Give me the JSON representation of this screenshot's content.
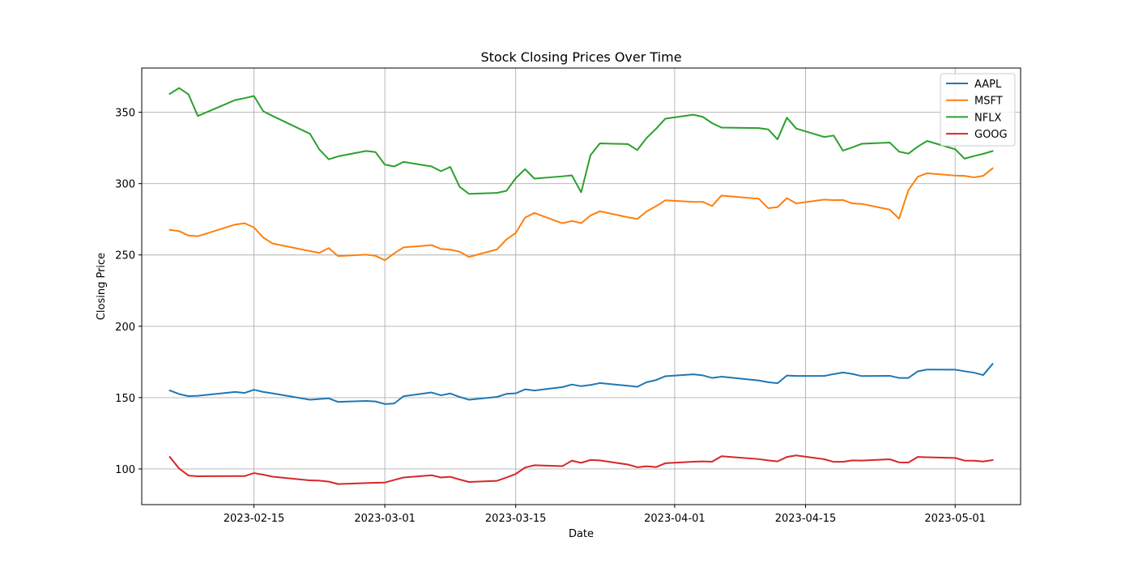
{
  "chart_data": {
    "type": "line",
    "title": "Stock Closing Prices Over Time",
    "xlabel": "Date",
    "ylabel": "Closing Price",
    "x_ticks": [
      "2023-02-15",
      "2023-03-01",
      "2023-03-15",
      "2023-04-01",
      "2023-04-15",
      "2023-05-01"
    ],
    "y_ticks": [
      100,
      150,
      200,
      250,
      300,
      350
    ],
    "xlim": [
      "2023-02-03",
      "2023-05-08"
    ],
    "ylim": [
      75,
      381
    ],
    "grid": true,
    "legend_position": "top-right",
    "series": [
      {
        "name": "AAPL",
        "color": "#1f77b4",
        "points": [
          [
            "2023-02-06",
            155
          ],
          [
            "2023-02-07",
            152.5
          ],
          [
            "2023-02-08",
            151
          ],
          [
            "2023-02-09",
            151.3
          ],
          [
            "2023-02-13",
            154
          ],
          [
            "2023-02-14",
            153.3
          ],
          [
            "2023-02-15",
            155.5
          ],
          [
            "2023-02-16",
            154
          ],
          [
            "2023-02-17",
            153
          ],
          [
            "2023-02-21",
            148.5
          ],
          [
            "2023-02-22",
            149
          ],
          [
            "2023-02-23",
            149.5
          ],
          [
            "2023-02-24",
            147
          ],
          [
            "2023-02-27",
            147.7
          ],
          [
            "2023-02-28",
            147.3
          ],
          [
            "2023-03-01",
            145.5
          ],
          [
            "2023-03-02",
            145.9
          ],
          [
            "2023-03-03",
            151
          ],
          [
            "2023-03-06",
            153.6
          ],
          [
            "2023-03-07",
            151.6
          ],
          [
            "2023-03-08",
            152.9
          ],
          [
            "2023-03-09",
            150.5
          ],
          [
            "2023-03-10",
            148.5
          ],
          [
            "2023-03-13",
            150.5
          ],
          [
            "2023-03-14",
            152.6
          ],
          [
            "2023-03-15",
            153
          ],
          [
            "2023-03-16",
            155.8
          ],
          [
            "2023-03-17",
            155
          ],
          [
            "2023-03-20",
            157.4
          ],
          [
            "2023-03-21",
            159.2
          ],
          [
            "2023-03-22",
            158
          ],
          [
            "2023-03-23",
            158.9
          ],
          [
            "2023-03-24",
            160.2
          ],
          [
            "2023-03-27",
            158.3
          ],
          [
            "2023-03-28",
            157.6
          ],
          [
            "2023-03-29",
            160.8
          ],
          [
            "2023-03-30",
            162.3
          ],
          [
            "2023-03-31",
            165
          ],
          [
            "2023-04-03",
            166.3
          ],
          [
            "2023-04-04",
            165.6
          ],
          [
            "2023-04-05",
            163.8
          ],
          [
            "2023-04-06",
            164.7
          ],
          [
            "2023-04-10",
            162
          ],
          [
            "2023-04-11",
            160.8
          ],
          [
            "2023-04-12",
            160.1
          ],
          [
            "2023-04-13",
            165.5
          ],
          [
            "2023-04-14",
            165.2
          ],
          [
            "2023-04-17",
            165.2
          ],
          [
            "2023-04-18",
            166.5
          ],
          [
            "2023-04-19",
            167.6
          ],
          [
            "2023-04-20",
            166.6
          ],
          [
            "2023-04-21",
            165.1
          ],
          [
            "2023-04-24",
            165.3
          ],
          [
            "2023-04-25",
            163.8
          ],
          [
            "2023-04-26",
            163.8
          ],
          [
            "2023-04-27",
            168.4
          ],
          [
            "2023-04-28",
            169.7
          ],
          [
            "2023-05-01",
            169.6
          ],
          [
            "2023-05-02",
            168.5
          ],
          [
            "2023-05-03",
            167.5
          ],
          [
            "2023-05-04",
            165.8
          ],
          [
            "2023-05-05",
            173.6
          ]
        ]
      },
      {
        "name": "MSFT",
        "color": "#ff7f0e",
        "points": [
          [
            "2023-02-06",
            267.6
          ],
          [
            "2023-02-07",
            266.7
          ],
          [
            "2023-02-08",
            263.6
          ],
          [
            "2023-02-09",
            263.1
          ],
          [
            "2023-02-13",
            271.3
          ],
          [
            "2023-02-14",
            272.2
          ],
          [
            "2023-02-15",
            269.3
          ],
          [
            "2023-02-16",
            262.2
          ],
          [
            "2023-02-17",
            258
          ],
          [
            "2023-02-21",
            252.7
          ],
          [
            "2023-02-22",
            251.5
          ],
          [
            "2023-02-23",
            254.8
          ],
          [
            "2023-02-24",
            249.2
          ],
          [
            "2023-02-27",
            250.2
          ],
          [
            "2023-02-28",
            249.4
          ],
          [
            "2023-03-01",
            246.3
          ],
          [
            "2023-03-02",
            251.1
          ],
          [
            "2023-03-03",
            255.3
          ],
          [
            "2023-03-06",
            256.9
          ],
          [
            "2023-03-07",
            254.2
          ],
          [
            "2023-03-08",
            253.7
          ],
          [
            "2023-03-09",
            252.3
          ],
          [
            "2023-03-10",
            248.6
          ],
          [
            "2023-03-13",
            253.9
          ],
          [
            "2023-03-14",
            260.8
          ],
          [
            "2023-03-15",
            265.4
          ],
          [
            "2023-03-16",
            276.2
          ],
          [
            "2023-03-17",
            279.4
          ],
          [
            "2023-03-20",
            272.2
          ],
          [
            "2023-03-21",
            273.8
          ],
          [
            "2023-03-22",
            272.3
          ],
          [
            "2023-03-23",
            277.7
          ],
          [
            "2023-03-24",
            280.6
          ],
          [
            "2023-03-27",
            276.4
          ],
          [
            "2023-03-28",
            275.2
          ],
          [
            "2023-03-29",
            280.5
          ],
          [
            "2023-03-30",
            284.1
          ],
          [
            "2023-03-31",
            288.3
          ],
          [
            "2023-04-03",
            287.2
          ],
          [
            "2023-04-04",
            287.2
          ],
          [
            "2023-04-05",
            284.3
          ],
          [
            "2023-04-06",
            291.6
          ],
          [
            "2023-04-10",
            289.4
          ],
          [
            "2023-04-11",
            282.8
          ],
          [
            "2023-04-12",
            283.5
          ],
          [
            "2023-04-13",
            289.8
          ],
          [
            "2023-04-14",
            286.1
          ],
          [
            "2023-04-17",
            288.8
          ],
          [
            "2023-04-18",
            288.4
          ],
          [
            "2023-04-19",
            288.5
          ],
          [
            "2023-04-20",
            286.1
          ],
          [
            "2023-04-21",
            285.8
          ],
          [
            "2023-04-24",
            281.8
          ],
          [
            "2023-04-25",
            275.4
          ],
          [
            "2023-04-26",
            295.4
          ],
          [
            "2023-04-27",
            304.8
          ],
          [
            "2023-04-28",
            307.3
          ],
          [
            "2023-05-01",
            305.6
          ],
          [
            "2023-05-02",
            305.4
          ],
          [
            "2023-05-03",
            304.4
          ],
          [
            "2023-05-04",
            305.4
          ],
          [
            "2023-05-05",
            310.7
          ]
        ]
      },
      {
        "name": "NFLX",
        "color": "#2ca02c",
        "points": [
          [
            "2023-02-06",
            362.9
          ],
          [
            "2023-02-07",
            367
          ],
          [
            "2023-02-08",
            362.5
          ],
          [
            "2023-02-09",
            347.4
          ],
          [
            "2023-02-13",
            358.6
          ],
          [
            "2023-02-14",
            359.9
          ],
          [
            "2023-02-15",
            361.4
          ],
          [
            "2023-02-16",
            350.7
          ],
          [
            "2023-02-17",
            347.4
          ],
          [
            "2023-02-21",
            334.9
          ],
          [
            "2023-02-22",
            323.9
          ],
          [
            "2023-02-23",
            317
          ],
          [
            "2023-02-24",
            319.1
          ],
          [
            "2023-02-27",
            322.9
          ],
          [
            "2023-02-28",
            322.1
          ],
          [
            "2023-03-01",
            313.3
          ],
          [
            "2023-03-02",
            312
          ],
          [
            "2023-03-03",
            315.2
          ],
          [
            "2023-03-06",
            312
          ],
          [
            "2023-03-07",
            308.7
          ],
          [
            "2023-03-08",
            311.7
          ],
          [
            "2023-03-09",
            297.8
          ],
          [
            "2023-03-10",
            292.8
          ],
          [
            "2023-03-13",
            293.5
          ],
          [
            "2023-03-14",
            294.9
          ],
          [
            "2023-03-15",
            303.8
          ],
          [
            "2023-03-16",
            310.1
          ],
          [
            "2023-03-17",
            303.5
          ],
          [
            "2023-03-20",
            305.1
          ],
          [
            "2023-03-21",
            305.8
          ],
          [
            "2023-03-22",
            293.9
          ],
          [
            "2023-03-23",
            320
          ],
          [
            "2023-03-24",
            328.2
          ],
          [
            "2023-03-27",
            327.7
          ],
          [
            "2023-03-28",
            323.5
          ],
          [
            "2023-03-29",
            332
          ],
          [
            "2023-03-30",
            338.4
          ],
          [
            "2023-03-31",
            345.5
          ],
          [
            "2023-04-03",
            348.3
          ],
          [
            "2023-04-04",
            346.8
          ],
          [
            "2023-04-05",
            342.4
          ],
          [
            "2023-04-06",
            339.3
          ],
          [
            "2023-04-10",
            338.9
          ],
          [
            "2023-04-11",
            338
          ],
          [
            "2023-04-12",
            331
          ],
          [
            "2023-04-13",
            346.2
          ],
          [
            "2023-04-14",
            338.6
          ],
          [
            "2023-04-17",
            332.7
          ],
          [
            "2023-04-18",
            333.7
          ],
          [
            "2023-04-19",
            323.1
          ],
          [
            "2023-04-20",
            325.4
          ],
          [
            "2023-04-21",
            327.9
          ],
          [
            "2023-04-24",
            328.8
          ],
          [
            "2023-04-25",
            322.4
          ],
          [
            "2023-04-26",
            321
          ],
          [
            "2023-04-27",
            325.9
          ],
          [
            "2023-04-28",
            329.9
          ],
          [
            "2023-05-01",
            324.1
          ],
          [
            "2023-05-02",
            317.5
          ],
          [
            "2023-05-03",
            319.3
          ],
          [
            "2023-05-04",
            320.9
          ],
          [
            "2023-05-05",
            322.8
          ]
        ]
      },
      {
        "name": "GOOG",
        "color": "#d62728",
        "points": [
          [
            "2023-02-06",
            108.4
          ],
          [
            "2023-02-07",
            100.3
          ],
          [
            "2023-02-08",
            95.4
          ],
          [
            "2023-02-09",
            94.9
          ],
          [
            "2023-02-13",
            95
          ],
          [
            "2023-02-14",
            95
          ],
          [
            "2023-02-15",
            97.1
          ],
          [
            "2023-02-16",
            96
          ],
          [
            "2023-02-17",
            94.6
          ],
          [
            "2023-02-21",
            92
          ],
          [
            "2023-02-22",
            91.8
          ],
          [
            "2023-02-23",
            91.1
          ],
          [
            "2023-02-24",
            89.4
          ],
          [
            "2023-02-27",
            90.1
          ],
          [
            "2023-02-28",
            90.3
          ],
          [
            "2023-03-01",
            90.5
          ],
          [
            "2023-03-02",
            92.3
          ],
          [
            "2023-03-03",
            94
          ],
          [
            "2023-03-06",
            95.6
          ],
          [
            "2023-03-07",
            94
          ],
          [
            "2023-03-08",
            94.5
          ],
          [
            "2023-03-09",
            92.6
          ],
          [
            "2023-03-10",
            90.9
          ],
          [
            "2023-03-13",
            91.7
          ],
          [
            "2023-03-14",
            94
          ],
          [
            "2023-03-15",
            96.5
          ],
          [
            "2023-03-16",
            101
          ],
          [
            "2023-03-17",
            102.6
          ],
          [
            "2023-03-20",
            102
          ],
          [
            "2023-03-21",
            105.8
          ],
          [
            "2023-03-22",
            104.3
          ],
          [
            "2023-03-23",
            106.3
          ],
          [
            "2023-03-24",
            106
          ],
          [
            "2023-03-27",
            103.1
          ],
          [
            "2023-03-28",
            101.2
          ],
          [
            "2023-03-29",
            101.9
          ],
          [
            "2023-03-30",
            101.3
          ],
          [
            "2023-03-31",
            104
          ],
          [
            "2023-04-03",
            105.1
          ],
          [
            "2023-04-04",
            105.3
          ],
          [
            "2023-04-05",
            105.1
          ],
          [
            "2023-04-06",
            108.9
          ],
          [
            "2023-04-10",
            106.9
          ],
          [
            "2023-04-11",
            106
          ],
          [
            "2023-04-12",
            105.3
          ],
          [
            "2023-04-13",
            108.4
          ],
          [
            "2023-04-14",
            109.5
          ],
          [
            "2023-04-17",
            106.8
          ],
          [
            "2023-04-18",
            105
          ],
          [
            "2023-04-19",
            105
          ],
          [
            "2023-04-20",
            106
          ],
          [
            "2023-04-21",
            105.9
          ],
          [
            "2023-04-24",
            106.8
          ],
          [
            "2023-04-25",
            104.6
          ],
          [
            "2023-04-26",
            104.5
          ],
          [
            "2023-04-27",
            108.4
          ],
          [
            "2023-04-28",
            108.2
          ],
          [
            "2023-05-01",
            107.7
          ],
          [
            "2023-05-02",
            105.9
          ],
          [
            "2023-05-03",
            105.8
          ],
          [
            "2023-05-04",
            105.2
          ],
          [
            "2023-05-05",
            106.2
          ]
        ]
      }
    ]
  }
}
